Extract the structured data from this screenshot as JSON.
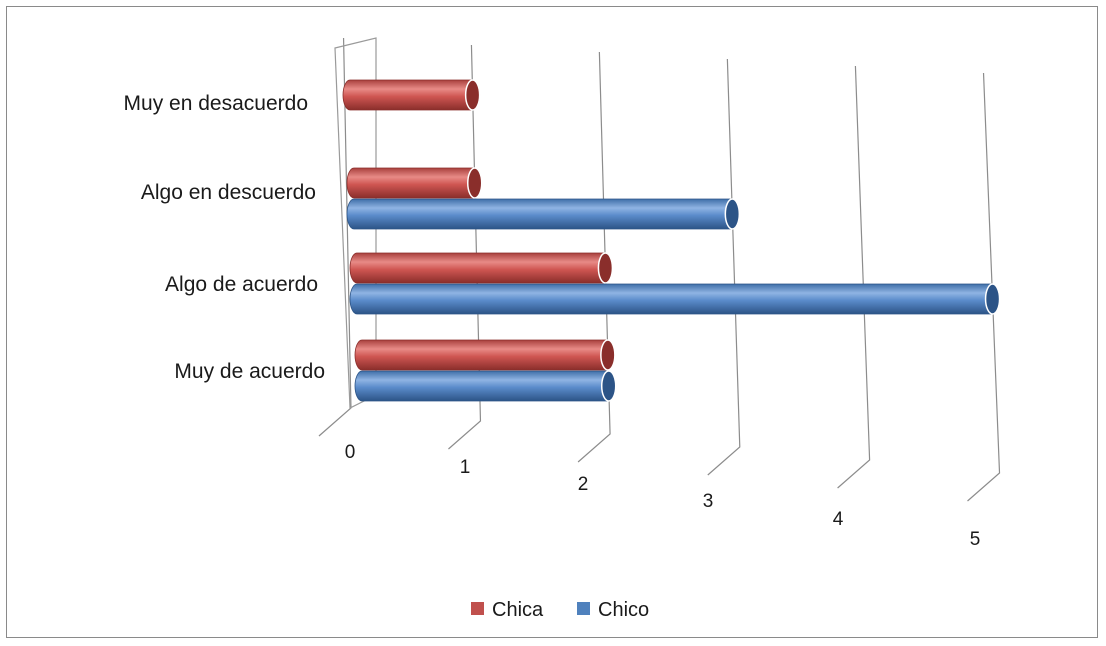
{
  "chart_data": {
    "type": "bar",
    "orientation": "horizontal",
    "three_d": true,
    "categories": [
      "Muy de acuerdo",
      "Algo de acuerdo",
      "Algo en descuerdo",
      "Muy en desacuerdo"
    ],
    "series": [
      {
        "name": "Chica",
        "color": "#c0504d",
        "values": [
          2,
          2,
          1,
          1
        ]
      },
      {
        "name": "Chico",
        "color": "#4f81bd",
        "values": [
          2,
          5,
          3,
          0
        ]
      }
    ],
    "xlim": [
      0,
      5
    ],
    "x_ticks": [
      "0",
      "1",
      "2",
      "3",
      "4",
      "5"
    ],
    "grid": true,
    "legend_position": "bottom"
  }
}
